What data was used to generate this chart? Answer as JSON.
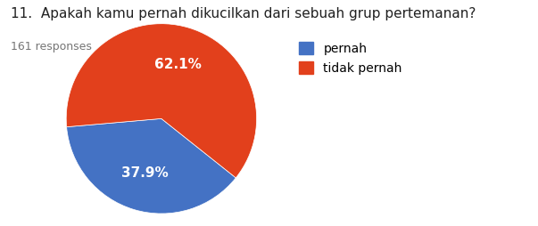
{
  "title": "11.  Apakah kamu pernah dikucilkan dari sebuah grup pertemanan?",
  "subtitle": "161 responses",
  "labels": [
    "pernah",
    "tidak pernah"
  ],
  "values": [
    37.9,
    62.1
  ],
  "colors": [
    "#4472c4",
    "#e2401c"
  ],
  "text_color_slices": [
    "white",
    "white"
  ],
  "pct_labels": [
    "37.9%",
    "62.1%"
  ],
  "title_fontsize": 11,
  "subtitle_fontsize": 9,
  "legend_fontsize": 10,
  "pct_fontsize": 11,
  "background_color": "#ffffff",
  "startangle": 185
}
